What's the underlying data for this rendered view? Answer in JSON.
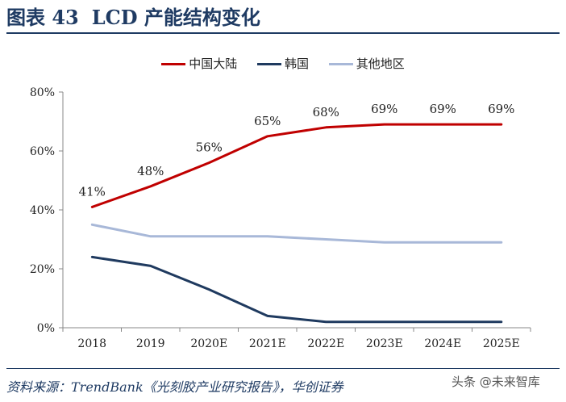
{
  "header": {
    "figure_label": "图表 43",
    "title": "LCD 产能结构变化"
  },
  "source_text": "资料来源：TrendBank《光刻胶产业研究报告》，华创证券",
  "watermark_text": "头条 @未来智库",
  "colors": {
    "header": "#1f3b63",
    "series_china": "#c00000",
    "series_korea": "#1f3a5f",
    "series_other": "#a8b8d8",
    "axis": "#888888"
  },
  "chart_data": {
    "type": "line",
    "title": "",
    "xlabel": "",
    "ylabel": "",
    "categories": [
      "2018",
      "2019",
      "2020E",
      "2021E",
      "2022E",
      "2023E",
      "2024E",
      "2025E"
    ],
    "ylim": [
      0,
      80
    ],
    "yticks": [
      0,
      20,
      40,
      60,
      80
    ],
    "ytick_labels": [
      "0%",
      "20%",
      "40%",
      "60%",
      "80%"
    ],
    "legend_position": "top-center",
    "grid": false,
    "series": [
      {
        "name": "中国大陆",
        "color": "#c00000",
        "values": [
          41,
          48,
          56,
          65,
          68,
          69,
          69,
          69
        ],
        "labels": [
          "41%",
          "48%",
          "56%",
          "65%",
          "68%",
          "69%",
          "69%",
          "69%"
        ]
      },
      {
        "name": "韩国",
        "color": "#1f3a5f",
        "values": [
          24,
          21,
          13,
          4,
          2,
          2,
          2,
          2
        ]
      },
      {
        "name": "其他地区",
        "color": "#a8b8d8",
        "values": [
          35,
          31,
          31,
          31,
          30,
          29,
          29,
          29
        ]
      }
    ]
  }
}
